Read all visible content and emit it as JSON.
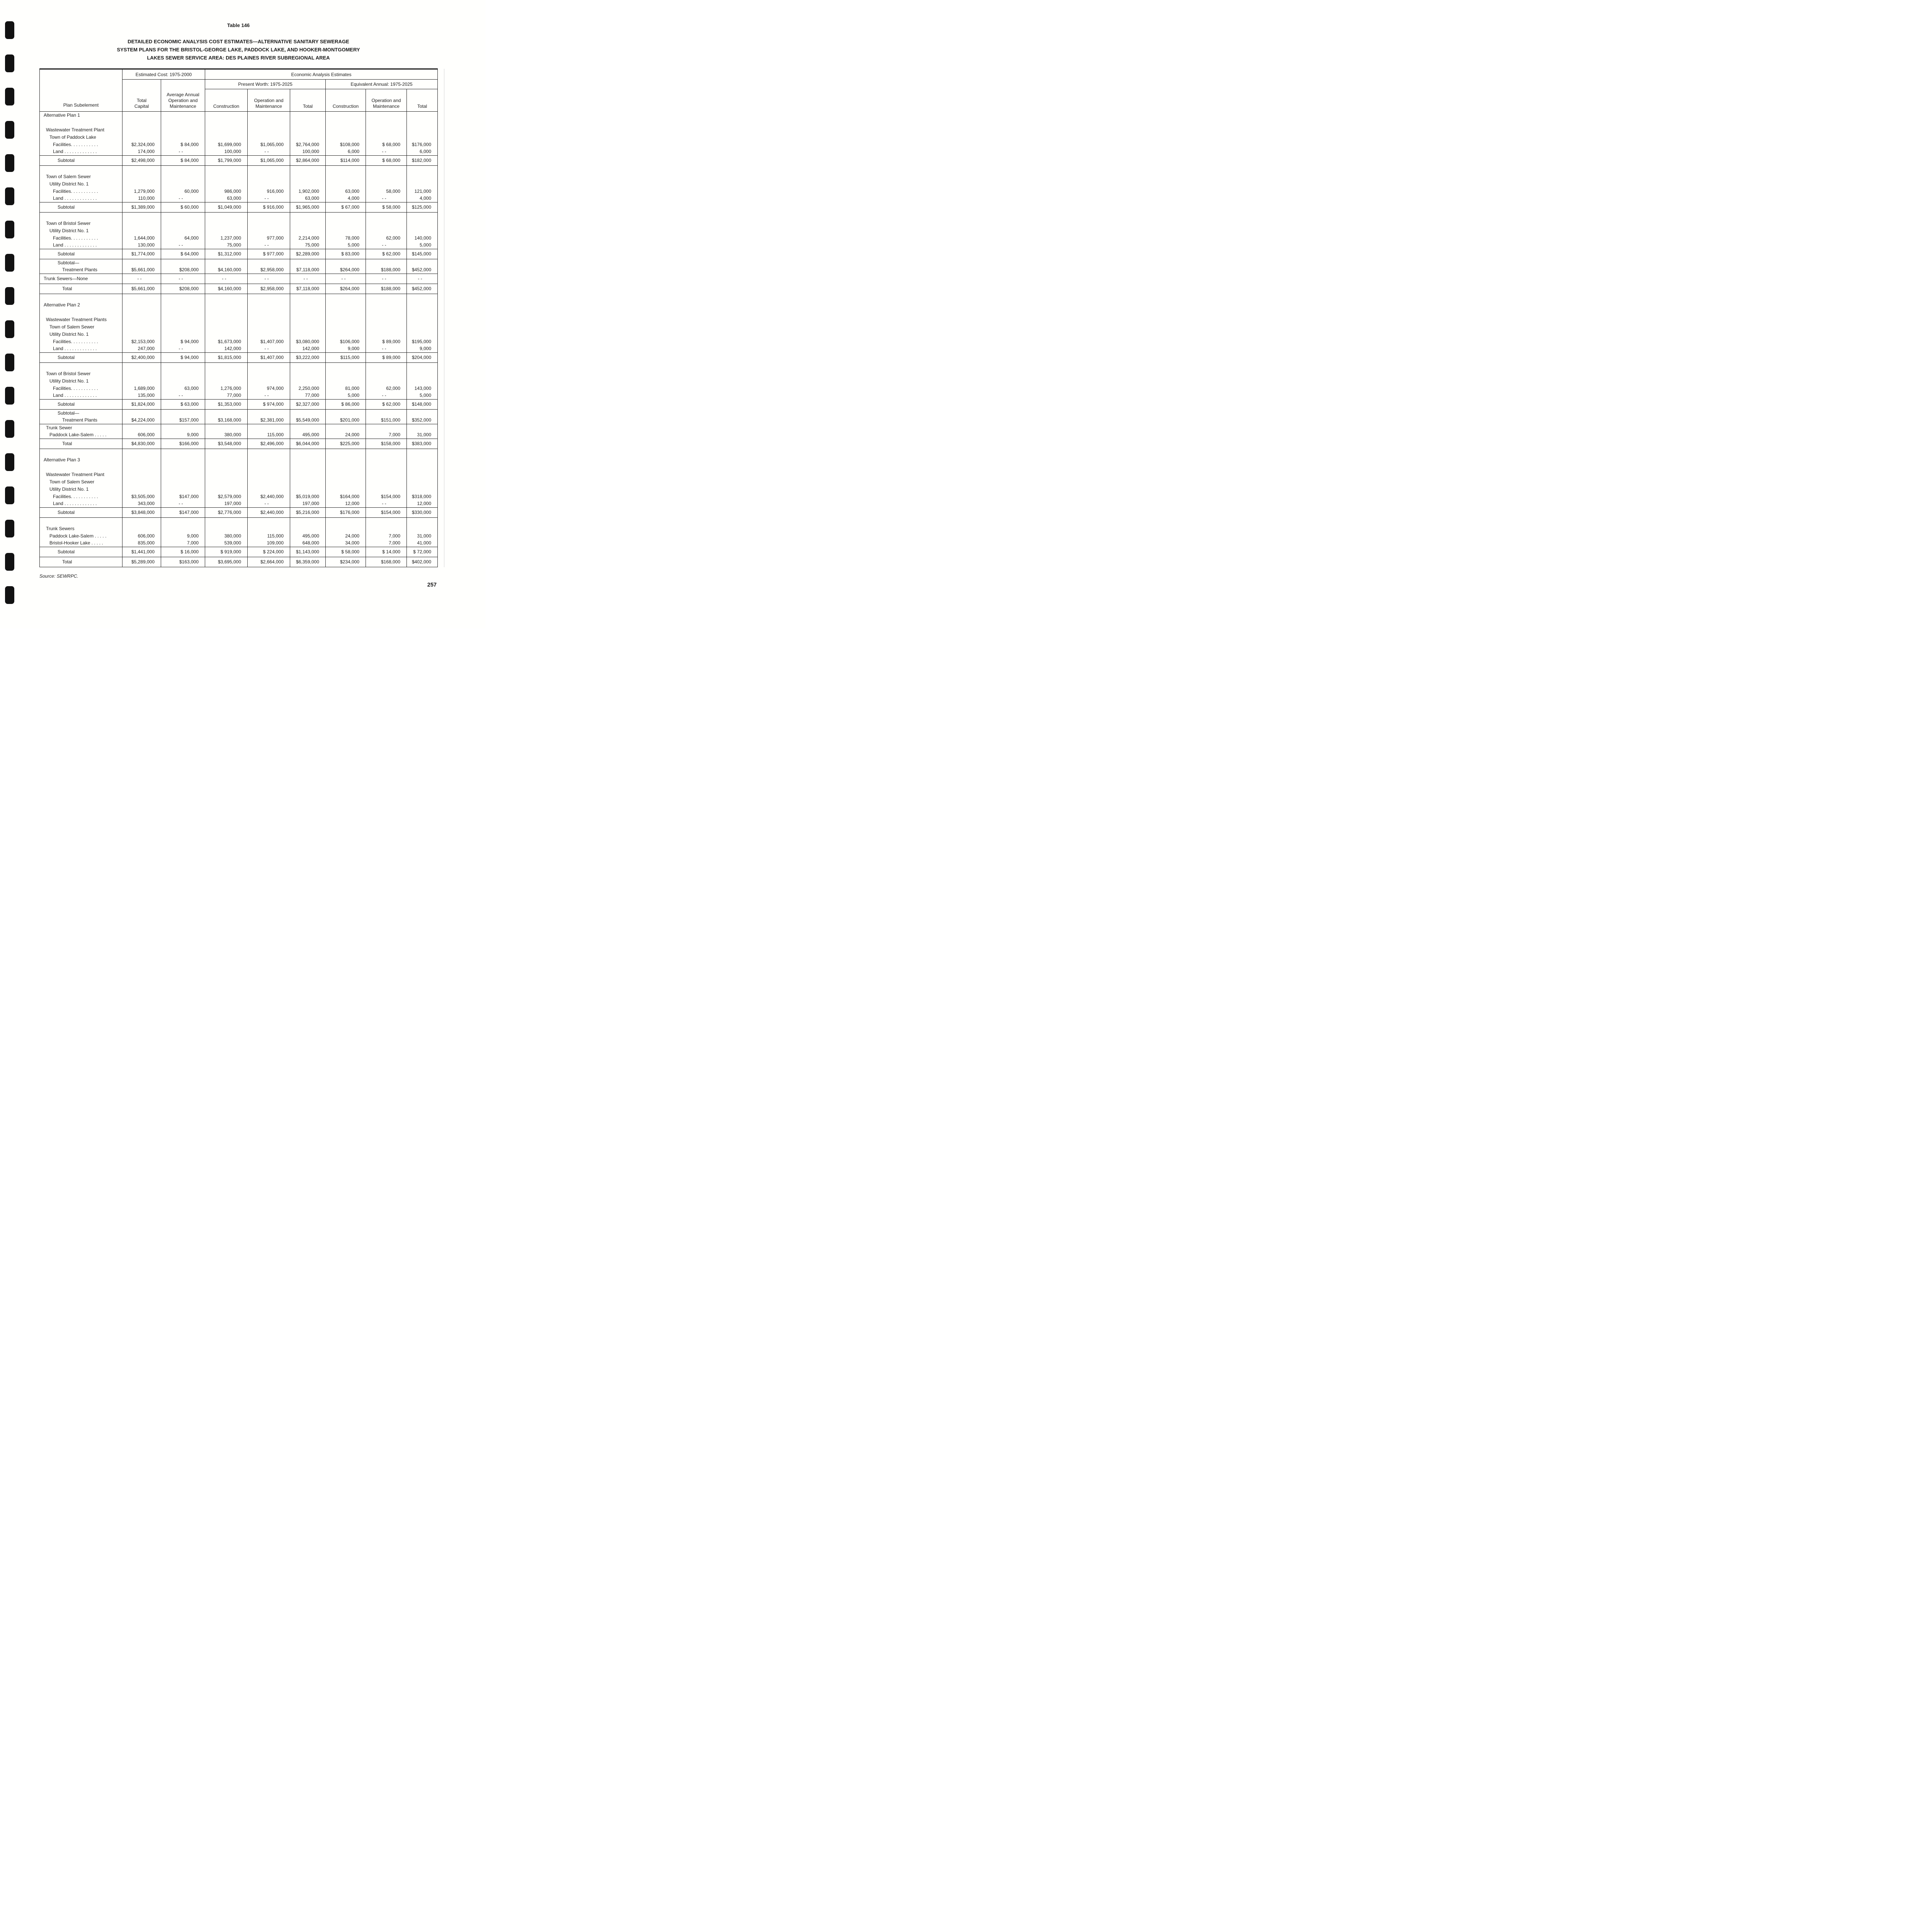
{
  "doc": {
    "table_label": "Table 146",
    "title_lines": [
      "DETAILED ECONOMIC ANALYSIS COST ESTIMATES—ALTERNATIVE SANITARY SEWERAGE",
      "SYSTEM PLANS FOR THE BRISTOL-GEORGE LAKE, PADDOCK LAKE, AND HOOKER-MONTGOMERY",
      "LAKES SEWER SERVICE AREA: DES PLAINES RIVER SUBREGIONAL AREA"
    ],
    "source": "Source:  SEWRPC.",
    "page_number": "257"
  },
  "table": {
    "header": {
      "plan_subelement": "Plan Subelement",
      "estimated_cost": "Estimated Cost: 1975-2000",
      "economic_analysis": "Economic Analysis Estimates",
      "present_worth": "Present Worth: 1975-2025",
      "equivalent_annual": "Equivalent Annual: 1975-2025",
      "total_capital": "Total\nCapital",
      "avg_annual_om": "Average Annual\nOperation and\nMaintenance",
      "construction": "Construction",
      "operation_maintenance": "Operation and\nMaintenance",
      "total": "Total"
    },
    "blocks": [
      {
        "rows": [
          {
            "t": "l",
            "i": 0,
            "l": "Alternative Plan 1"
          },
          {
            "t": "s"
          },
          {
            "t": "l",
            "i": 1,
            "l": "Wastewater Treatment Plant"
          },
          {
            "t": "l",
            "i": 2,
            "l": "Town of Paddock Lake"
          },
          {
            "t": "d",
            "i": 3,
            "l": "Facilities. . . . . . . . . . .",
            "v": [
              "$2,324,000",
              "$ 84,000",
              "$1,699,000",
              "$1,065,000",
              "$2,764,000",
              "$108,000",
              "$ 68,000",
              "$176,000"
            ]
          },
          {
            "t": "d",
            "i": 3,
            "l": "Land . . . . . . . . . . . . .",
            "v": [
              "174,000",
              "- -",
              "100,000",
              "- -",
              "100,000",
              "6,000",
              "- -",
              "6,000"
            ]
          }
        ]
      },
      {
        "rows": [
          {
            "t": "d",
            "i": 4,
            "l": "Subtotal",
            "v": [
              "$2,498,000",
              "$ 84,000",
              "$1,799,000",
              "$1,065,000",
              "$2,864,000",
              "$114,000",
              "$ 68,000",
              "$182,000"
            ]
          }
        ]
      },
      {
        "rows": [
          {
            "t": "s"
          },
          {
            "t": "l",
            "i": 1,
            "l": "Town of Salem Sewer"
          },
          {
            "t": "l",
            "i": 2,
            "l": "Utility District No. 1"
          },
          {
            "t": "d",
            "i": 3,
            "l": "Facilities. . . . . . . . . . .",
            "v": [
              "1,279,000",
              "60,000",
              "986,000",
              "916,000",
              "1,902,000",
              "63,000",
              "58,000",
              "121,000"
            ]
          },
          {
            "t": "d",
            "i": 3,
            "l": "Land . . . . . . . . . . . . .",
            "v": [
              "110,000",
              "- -",
              "63,000",
              "- -",
              "63,000",
              "4,000",
              "- -",
              "4,000"
            ]
          }
        ]
      },
      {
        "rows": [
          {
            "t": "d",
            "i": 4,
            "l": "Subtotal",
            "v": [
              "$1,389,000",
              "$ 60,000",
              "$1,049,000",
              "$ 916,000",
              "$1,965,000",
              "$ 67,000",
              "$ 58,000",
              "$125,000"
            ]
          }
        ]
      },
      {
        "rows": [
          {
            "t": "s"
          },
          {
            "t": "l",
            "i": 1,
            "l": "Town of Bristol Sewer"
          },
          {
            "t": "l",
            "i": 2,
            "l": "Utility District No. 1"
          },
          {
            "t": "d",
            "i": 3,
            "l": "Facilities. . . . . . . . . . .",
            "v": [
              "1,644,000",
              "64,000",
              "1,237,000",
              "977,000",
              "2,214,000",
              "78,000",
              "62,000",
              "140,000"
            ]
          },
          {
            "t": "d",
            "i": 3,
            "l": "Land . . . . . . . . . . . . .",
            "v": [
              "130,000",
              "- -",
              "75,000",
              "- -",
              "75,000",
              "5,000",
              "- -",
              "5,000"
            ]
          }
        ]
      },
      {
        "rows": [
          {
            "t": "d",
            "i": 4,
            "l": "Subtotal",
            "v": [
              "$1,774,000",
              "$ 64,000",
              "$1,312,000",
              "$ 977,000",
              "$2,289,000",
              "$ 83,000",
              "$ 62,000",
              "$145,000"
            ]
          }
        ]
      },
      {
        "rows": [
          {
            "t": "l",
            "i": 4,
            "l": "Subtotal—"
          },
          {
            "t": "d",
            "i": 5,
            "l": "Treatment Plants",
            "v": [
              "$5,661,000",
              "$208,000",
              "$4,160,000",
              "$2,958,000",
              "$7,118,000",
              "$264,000",
              "$188,000",
              "$452,000"
            ]
          }
        ]
      },
      {
        "rows": [
          {
            "t": "d",
            "i": 0,
            "l": "Trunk Sewers—None",
            "v": [
              "- -",
              "- -",
              "- -",
              "- -",
              "- -",
              "- -",
              "- -",
              "- -"
            ]
          }
        ]
      },
      {
        "rows": [
          {
            "t": "d",
            "i": 5,
            "l": "Total",
            "v": [
              "$5,661,000",
              "$208,000",
              "$4,160,000",
              "$2,958,000",
              "$7,118,000",
              "$264,000",
              "$188,000",
              "$452,000"
            ]
          }
        ]
      },
      {
        "rows": [
          {
            "t": "s"
          },
          {
            "t": "l",
            "i": 0,
            "l": "Alternative Plan 2"
          },
          {
            "t": "s"
          },
          {
            "t": "l",
            "i": 1,
            "l": "Wastewater Treatment Plants"
          },
          {
            "t": "l",
            "i": 2,
            "l": "Town of Salem Sewer"
          },
          {
            "t": "l",
            "i": 2,
            "l": "Utility District No. 1"
          },
          {
            "t": "d",
            "i": 3,
            "l": "Facilities. . . . . . . . . . .",
            "v": [
              "$2,153,000",
              "$ 94,000",
              "$1,673,000",
              "$1,407,000",
              "$3,080,000",
              "$106,000",
              "$ 89,000",
              "$195,000"
            ]
          },
          {
            "t": "d",
            "i": 3,
            "l": "Land . . . . . . . . . . . . .",
            "v": [
              "247,000",
              "- -",
              "142,000",
              "- -",
              "142,000",
              "9,000",
              "- -",
              "9,000"
            ]
          }
        ]
      },
      {
        "rows": [
          {
            "t": "d",
            "i": 4,
            "l": "Subtotal",
            "v": [
              "$2,400,000",
              "$ 94,000",
              "$1,815,000",
              "$1,407,000",
              "$3,222,000",
              "$115,000",
              "$ 89,000",
              "$204,000"
            ]
          }
        ]
      },
      {
        "rows": [
          {
            "t": "s"
          },
          {
            "t": "l",
            "i": 1,
            "l": "Town of Bristol Sewer"
          },
          {
            "t": "l",
            "i": 2,
            "l": "Utility District No. 1"
          },
          {
            "t": "d",
            "i": 3,
            "l": "Facilities. . . . . . . . . . .",
            "v": [
              "1,689,000",
              "63,000",
              "1,276,000",
              "974,000",
              "2,250,000",
              "81,000",
              "62,000",
              "143,000"
            ]
          },
          {
            "t": "d",
            "i": 3,
            "l": "Land . . . . . . . . . . . . .",
            "v": [
              "135,000",
              "- -",
              "77,000",
              "- -",
              "77,000",
              "5,000",
              "- -",
              "5,000"
            ]
          }
        ]
      },
      {
        "rows": [
          {
            "t": "d",
            "i": 4,
            "l": "Subtotal",
            "v": [
              "$1,824,000",
              "$ 63,000",
              "$1,353,000",
              "$ 974,000",
              "$2,327,000",
              "$ 86,000",
              "$ 62,000",
              "$148,000"
            ]
          }
        ]
      },
      {
        "rows": [
          {
            "t": "l",
            "i": 4,
            "l": "Subtotal—"
          },
          {
            "t": "d",
            "i": 5,
            "l": "Treatment Plants",
            "v": [
              "$4,224,000",
              "$157,000",
              "$3,168,000",
              "$2,381,000",
              "$5,549,000",
              "$201,000",
              "$151,000",
              "$352,000"
            ]
          }
        ]
      },
      {
        "rows": [
          {
            "t": "l",
            "i": 1,
            "l": "Trunk Sewer"
          },
          {
            "t": "d",
            "i": 2,
            "l": "Paddock Lake-Salem . . . . .",
            "v": [
              "606,000",
              "9,000",
              "380,000",
              "115,000",
              "495,000",
              "24,000",
              "7,000",
              "31,000"
            ]
          }
        ]
      },
      {
        "rows": [
          {
            "t": "d",
            "i": 5,
            "l": "Total",
            "v": [
              "$4,830,000",
              "$166,000",
              "$3,548,000",
              "$2,496,000",
              "$6,044,000",
              "$225,000",
              "$158,000",
              "$383,000"
            ]
          }
        ]
      },
      {
        "rows": [
          {
            "t": "s"
          },
          {
            "t": "l",
            "i": 0,
            "l": "Alternative Plan 3"
          },
          {
            "t": "s"
          },
          {
            "t": "l",
            "i": 1,
            "l": "Wastewater Treatment Plant"
          },
          {
            "t": "l",
            "i": 2,
            "l": "Town of Salem Sewer"
          },
          {
            "t": "l",
            "i": 2,
            "l": "Utility District No. 1"
          },
          {
            "t": "d",
            "i": 3,
            "l": "Facilities. . . . . . . . . . .",
            "v": [
              "$3,505,000",
              "$147,000",
              "$2,579,000",
              "$2,440,000",
              "$5,019,000",
              "$164,000",
              "$154,000",
              "$318,000"
            ]
          },
          {
            "t": "d",
            "i": 3,
            "l": "Land . . . . . . . . . . . . .",
            "v": [
              "343,000",
              "- -",
              "197,000",
              "- -",
              "197,000",
              "12,000",
              "- -",
              "12,000"
            ]
          }
        ]
      },
      {
        "rows": [
          {
            "t": "d",
            "i": 4,
            "l": "Subtotal",
            "v": [
              "$3,848,000",
              "$147,000",
              "$2,776,000",
              "$2,440,000",
              "$5,216,000",
              "$176,000",
              "$154,000",
              "$330,000"
            ]
          }
        ]
      },
      {
        "rows": [
          {
            "t": "s"
          },
          {
            "t": "l",
            "i": 1,
            "l": "Trunk Sewers"
          },
          {
            "t": "d",
            "i": 2,
            "l": "Paddock Lake-Salem . . . . .",
            "v": [
              "606,000",
              "9,000",
              "380,000",
              "115,000",
              "495,000",
              "24,000",
              "7,000",
              "31,000"
            ]
          },
          {
            "t": "d",
            "i": 2,
            "l": "Bristol-Hooker Lake . . . . .",
            "v": [
              "835,000",
              "7,000",
              "539,000",
              "109,000",
              "648,000",
              "34,000",
              "7,000",
              "41,000"
            ]
          }
        ]
      },
      {
        "rows": [
          {
            "t": "d",
            "i": 4,
            "l": "Subtotal",
            "v": [
              "$1,441,000",
              "$ 16,000",
              "$ 919,000",
              "$ 224,000",
              "$1,143,000",
              "$ 58,000",
              "$ 14,000",
              "$ 72,000"
            ]
          }
        ]
      },
      {
        "rows": [
          {
            "t": "d",
            "i": 5,
            "l": "Total",
            "v": [
              "$5,289,000",
              "$163,000",
              "$3,695,000",
              "$2,664,000",
              "$6,359,000",
              "$234,000",
              "$168,000",
              "$402,000"
            ]
          }
        ]
      }
    ]
  }
}
